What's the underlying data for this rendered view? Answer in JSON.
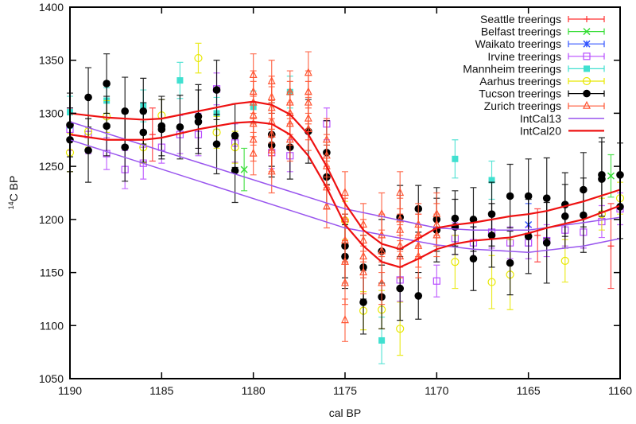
{
  "chart_data": {
    "type": "scatter",
    "xlabel": "cal BP",
    "ylabel_sup": "14",
    "ylabel": "C BP",
    "xlim": [
      1190,
      1160
    ],
    "ylim": [
      1050,
      1400
    ],
    "x_reversed": true,
    "xticks": [
      "1190",
      "1185",
      "1180",
      "1175",
      "1170",
      "1165",
      "1160"
    ],
    "yticks": [
      "1050",
      "1100",
      "1150",
      "1200",
      "1250",
      "1300",
      "1350",
      "1400"
    ],
    "grid": false,
    "legend_position": "top-right",
    "series": [
      {
        "name": "Seattle treerings",
        "color": "#ff3030",
        "marker": "plus",
        "points": [
          [
            1185.5,
            1280,
            25
          ],
          [
            1171,
            1185,
            20
          ],
          [
            1164.5,
            1185,
            25
          ],
          [
            1160.5,
            1175,
            40
          ]
        ]
      },
      {
        "name": "Belfast treerings",
        "color": "#33dd33",
        "marker": "x",
        "points": [
          [
            1180.5,
            1247,
            20
          ],
          [
            1160.5,
            1241,
            20
          ]
        ]
      },
      {
        "name": "Waikato treerings",
        "color": "#3355ff",
        "marker": "star",
        "points": [
          [
            1165,
            1195,
            20
          ]
        ]
      },
      {
        "name": "Irvine treerings",
        "color": "#b84cff",
        "marker": "square",
        "points": [
          [
            1190,
            1285,
            20
          ],
          [
            1189,
            1280,
            18
          ],
          [
            1188,
            1262,
            15
          ],
          [
            1187,
            1247,
            18
          ],
          [
            1186,
            1253,
            15
          ],
          [
            1185,
            1268,
            15
          ],
          [
            1184,
            1280,
            18
          ],
          [
            1183,
            1280,
            20
          ],
          [
            1182,
            1323,
            15
          ],
          [
            1181,
            1272,
            18
          ],
          [
            1179,
            1263,
            15
          ],
          [
            1178,
            1260,
            15
          ],
          [
            1176,
            1290,
            15
          ],
          [
            1172,
            1143,
            20
          ],
          [
            1170,
            1142,
            15
          ],
          [
            1169,
            1182,
            15
          ],
          [
            1168,
            1178,
            15
          ],
          [
            1167,
            1188,
            15
          ],
          [
            1166,
            1178,
            15
          ],
          [
            1165,
            1178,
            15
          ],
          [
            1164,
            1180,
            15
          ],
          [
            1163,
            1190,
            15
          ],
          [
            1162,
            1188,
            15
          ],
          [
            1161,
            1198,
            15
          ],
          [
            1160,
            1210,
            15
          ]
        ]
      },
      {
        "name": "Mannheim treerings",
        "color": "#40e0d0",
        "marker": "filled-square",
        "points": [
          [
            1190,
            1301,
            15
          ],
          [
            1188,
            1312,
            12
          ],
          [
            1186,
            1307,
            15
          ],
          [
            1184,
            1331,
            17
          ],
          [
            1182,
            1300,
            15
          ],
          [
            1180,
            1306,
            15
          ],
          [
            1178,
            1320,
            15
          ],
          [
            1173,
            1086,
            22
          ],
          [
            1169,
            1257,
            18
          ],
          [
            1167,
            1237,
            18
          ]
        ]
      },
      {
        "name": "Aarhus treerings",
        "color": "#e8e800",
        "marker": "circle",
        "points": [
          [
            1190,
            1263,
            18
          ],
          [
            1189,
            1283,
            15
          ],
          [
            1188,
            1297,
            15
          ],
          [
            1186,
            1268,
            15
          ],
          [
            1185,
            1298,
            15
          ],
          [
            1183,
            1352,
            14
          ],
          [
            1182,
            1282,
            15
          ],
          [
            1181,
            1268,
            15
          ],
          [
            1175,
            1199,
            18
          ],
          [
            1174,
            1114,
            18
          ],
          [
            1173,
            1115,
            18
          ],
          [
            1172,
            1097,
            25
          ],
          [
            1169,
            1160,
            25
          ],
          [
            1167,
            1141,
            25
          ],
          [
            1166,
            1148,
            33
          ],
          [
            1163,
            1161,
            20
          ],
          [
            1161,
            1205,
            15
          ],
          [
            1160,
            1220,
            15
          ]
        ]
      },
      {
        "name": "Tucson treerings",
        "color": "#000000",
        "marker": "filled-circle",
        "points": [
          [
            1190,
            1289,
            30
          ],
          [
            1190,
            1275,
            30
          ],
          [
            1189,
            1315,
            28
          ],
          [
            1189,
            1265,
            30
          ],
          [
            1188,
            1328,
            28
          ],
          [
            1188,
            1288,
            28
          ],
          [
            1187,
            1302,
            32
          ],
          [
            1187,
            1268,
            32
          ],
          [
            1186,
            1302,
            31
          ],
          [
            1186,
            1282,
            28
          ],
          [
            1185,
            1288,
            28
          ],
          [
            1185,
            1285,
            28
          ],
          [
            1184,
            1287,
            30
          ],
          [
            1183,
            1297,
            30
          ],
          [
            1183,
            1292,
            30
          ],
          [
            1182,
            1322,
            28
          ],
          [
            1182,
            1271,
            28
          ],
          [
            1181,
            1279,
            30
          ],
          [
            1181,
            1246,
            30
          ],
          [
            1179,
            1280,
            30
          ],
          [
            1179,
            1270,
            30
          ],
          [
            1178,
            1268,
            30
          ],
          [
            1177,
            1283,
            30
          ],
          [
            1176,
            1263,
            30
          ],
          [
            1176,
            1240,
            30
          ],
          [
            1175,
            1175,
            30
          ],
          [
            1175,
            1165,
            30
          ],
          [
            1174,
            1155,
            30
          ],
          [
            1174,
            1122,
            30
          ],
          [
            1173,
            1170,
            30
          ],
          [
            1173,
            1127,
            30
          ],
          [
            1172,
            1202,
            30
          ],
          [
            1172,
            1135,
            30
          ],
          [
            1171,
            1210,
            22
          ],
          [
            1171,
            1128,
            22
          ],
          [
            1170,
            1200,
            30
          ],
          [
            1170,
            1190,
            30
          ],
          [
            1169,
            1201,
            26
          ],
          [
            1169,
            1193,
            26
          ],
          [
            1168,
            1200,
            30
          ],
          [
            1168,
            1163,
            30
          ],
          [
            1167,
            1205,
            30
          ],
          [
            1167,
            1185,
            30
          ],
          [
            1166,
            1222,
            30
          ],
          [
            1166,
            1159,
            30
          ],
          [
            1165,
            1222,
            35
          ],
          [
            1165,
            1184,
            35
          ],
          [
            1164,
            1220,
            38
          ],
          [
            1164,
            1178,
            38
          ],
          [
            1163,
            1214,
            30
          ],
          [
            1163,
            1203,
            30
          ],
          [
            1162,
            1228,
            35
          ],
          [
            1162,
            1204,
            35
          ],
          [
            1161,
            1242,
            35
          ],
          [
            1161,
            1238,
            35
          ],
          [
            1160,
            1242,
            30
          ],
          [
            1160,
            1212,
            30
          ]
        ]
      },
      {
        "name": "Zurich treerings",
        "color": "#ff5533",
        "marker": "triangle",
        "points": [
          [
            1180,
            1336,
            20
          ],
          [
            1180,
            1320,
            20
          ],
          [
            1180,
            1310,
            20
          ],
          [
            1180,
            1298,
            20
          ],
          [
            1180,
            1290,
            20
          ],
          [
            1180,
            1275,
            20
          ],
          [
            1180,
            1262,
            20
          ],
          [
            1179,
            1330,
            20
          ],
          [
            1179,
            1315,
            20
          ],
          [
            1179,
            1305,
            20
          ],
          [
            1179,
            1292,
            20
          ],
          [
            1179,
            1280,
            20
          ],
          [
            1179,
            1265,
            20
          ],
          [
            1179,
            1245,
            20
          ],
          [
            1178,
            1320,
            20
          ],
          [
            1178,
            1310,
            20
          ],
          [
            1178,
            1300,
            20
          ],
          [
            1178,
            1290,
            20
          ],
          [
            1178,
            1275,
            20
          ],
          [
            1177,
            1338,
            20
          ],
          [
            1177,
            1320,
            20
          ],
          [
            1177,
            1310,
            20
          ],
          [
            1177,
            1295,
            20
          ],
          [
            1177,
            1285,
            20
          ],
          [
            1176,
            1275,
            20
          ],
          [
            1176,
            1260,
            20
          ],
          [
            1176,
            1250,
            20
          ],
          [
            1176,
            1230,
            20
          ],
          [
            1176,
            1212,
            20
          ],
          [
            1175,
            1225,
            20
          ],
          [
            1175,
            1200,
            20
          ],
          [
            1175,
            1180,
            20
          ],
          [
            1175,
            1160,
            20
          ],
          [
            1175,
            1140,
            20
          ],
          [
            1175,
            1105,
            20
          ],
          [
            1174,
            1195,
            20
          ],
          [
            1174,
            1180,
            20
          ],
          [
            1174,
            1165,
            20
          ],
          [
            1174,
            1150,
            20
          ],
          [
            1173,
            1205,
            20
          ],
          [
            1173,
            1185,
            20
          ],
          [
            1173,
            1170,
            20
          ],
          [
            1173,
            1140,
            20
          ],
          [
            1172,
            1225,
            20
          ],
          [
            1172,
            1200,
            20
          ],
          [
            1172,
            1190,
            20
          ],
          [
            1172,
            1175,
            20
          ],
          [
            1172,
            1165,
            20
          ],
          [
            1171,
            1195,
            20
          ],
          [
            1171,
            1185,
            20
          ],
          [
            1171,
            1175,
            20
          ],
          [
            1171,
            1165,
            20
          ],
          [
            1170,
            1205,
            20
          ],
          [
            1170,
            1195,
            20
          ],
          [
            1170,
            1185,
            20
          ]
        ]
      }
    ],
    "curves": [
      {
        "name": "IntCal13",
        "color": "#9955ee",
        "bands": [
          [
            [
              1190,
              1292
            ],
            [
              1175,
              1210
            ],
            [
              1170,
              1192
            ],
            [
              1168,
              1190
            ],
            [
              1165,
              1190
            ],
            [
              1162,
              1197
            ],
            [
              1160,
              1202
            ]
          ],
          [
            [
              1190,
              1275
            ],
            [
              1175,
              1192
            ],
            [
              1170,
              1176
            ],
            [
              1168,
              1172
            ],
            [
              1165,
              1169
            ],
            [
              1162,
              1175
            ],
            [
              1160,
              1182
            ]
          ]
        ]
      },
      {
        "name": "IntCal20",
        "color": "#ee1111",
        "bands": [
          [
            [
              1190,
              1300
            ],
            [
              1188,
              1296
            ],
            [
              1186,
              1294
            ],
            [
              1185,
              1295
            ],
            [
              1183,
              1302
            ],
            [
              1181,
              1309
            ],
            [
              1180,
              1311
            ],
            [
              1179,
              1308
            ],
            [
              1178,
              1299
            ],
            [
              1177,
              1280
            ],
            [
              1176,
              1250
            ],
            [
              1175,
              1215
            ],
            [
              1174,
              1190
            ],
            [
              1173,
              1177
            ],
            [
              1172,
              1172
            ],
            [
              1171,
              1182
            ],
            [
              1170,
              1192
            ],
            [
              1169,
              1195
            ],
            [
              1168,
              1197
            ],
            [
              1166,
              1203
            ],
            [
              1165,
              1205
            ],
            [
              1164,
              1208
            ],
            [
              1162,
              1217
            ],
            [
              1160,
              1228
            ]
          ],
          [
            [
              1190,
              1280
            ],
            [
              1188,
              1275
            ],
            [
              1186,
              1275
            ],
            [
              1185,
              1277
            ],
            [
              1183,
              1285
            ],
            [
              1181,
              1291
            ],
            [
              1180,
              1292
            ],
            [
              1179,
              1290
            ],
            [
              1178,
              1280
            ],
            [
              1177,
              1260
            ],
            [
              1176,
              1230
            ],
            [
              1175,
              1195
            ],
            [
              1174,
              1175
            ],
            [
              1173,
              1160
            ],
            [
              1172,
              1155
            ],
            [
              1171,
              1163
            ],
            [
              1170,
              1172
            ],
            [
              1169,
              1177
            ],
            [
              1168,
              1180
            ],
            [
              1166,
              1183
            ],
            [
              1165,
              1187
            ],
            [
              1164,
              1192
            ],
            [
              1162,
              1200
            ],
            [
              1160,
              1213
            ]
          ]
        ]
      }
    ]
  }
}
